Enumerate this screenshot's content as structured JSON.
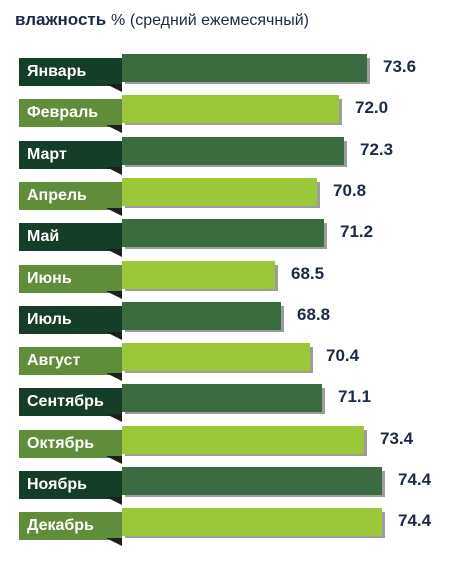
{
  "title": {
    "bold": "влажность",
    "pct": "%",
    "sub": "(средний ежемесячный)"
  },
  "colors": {
    "dark_bar": "#3b6b40",
    "light_bar": "#9dc73b",
    "dark_label": "#153e28",
    "light_label": "#5f8d3a",
    "value_text": "#1c2a44"
  },
  "chart_data": {
    "type": "bar",
    "orientation": "horizontal",
    "title": "влажность % (средний ежемесячный)",
    "categories": [
      "Январь",
      "Февраль",
      "Март",
      "Апрель",
      "Май",
      "Июнь",
      "Июль",
      "Август",
      "Сентябрь",
      "Октябрь",
      "Ноябрь",
      "Декабрь"
    ],
    "values": [
      73.6,
      72.0,
      72.3,
      70.8,
      71.2,
      68.5,
      68.8,
      70.4,
      71.1,
      73.4,
      74.4,
      74.4
    ],
    "value_labels": [
      "73.6",
      "72.0",
      "72.3",
      "70.8",
      "71.2",
      "68.5",
      "68.8",
      "70.4",
      "71.1",
      "73.4",
      "74.4",
      "74.4"
    ],
    "grid": false,
    "legend": "none"
  }
}
